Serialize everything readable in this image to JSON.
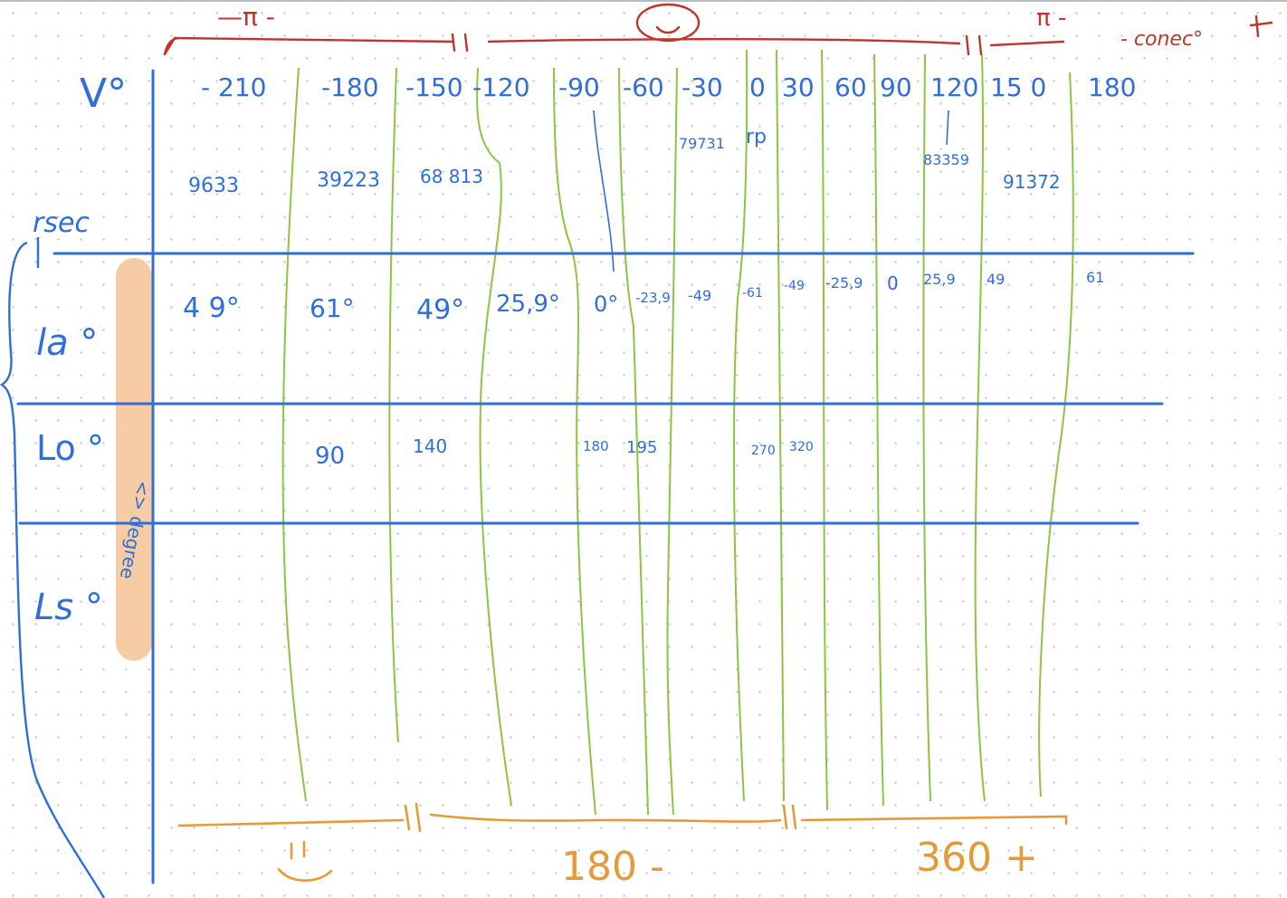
{
  "colors": {
    "blue": "#2f6fd6",
    "green": "#8cc63f",
    "red": "#c0352b",
    "orange": "#e59a3a",
    "highlight": "#f6c79b"
  },
  "header": {
    "minus_pi": "—π  -",
    "smiley": "☺",
    "pi_minus": "π -",
    "conec": "- conec°",
    "plus": "+"
  },
  "rows": {
    "v": "V°",
    "rsec": "rsec",
    "la": "la  °",
    "lo": "Lo °",
    "ls": "Ls °",
    "highlight_text": "<> degree"
  },
  "v_values": [
    "- 210",
    "-180",
    "-150",
    "-120",
    "-90",
    "-60",
    "-30",
    "0",
    "30",
    "60",
    "90",
    "120",
    "15 0",
    "180"
  ],
  "rsec_values": [
    "9633",
    "39223",
    "68 813",
    "79731",
    "rp",
    "83359",
    "91372"
  ],
  "la_values": [
    "4 9°",
    "61°",
    "49°",
    "25,9°",
    "0°",
    "-23,9",
    "-49",
    "-61",
    "-49",
    "-25,9",
    "0",
    "25,9",
    "49",
    "61"
  ],
  "lo_values": [
    "90",
    "140",
    "180",
    "195",
    "270",
    "320"
  ],
  "footer": {
    "smiley": "☺",
    "label_180": "180 -",
    "label_360": "360 +"
  }
}
